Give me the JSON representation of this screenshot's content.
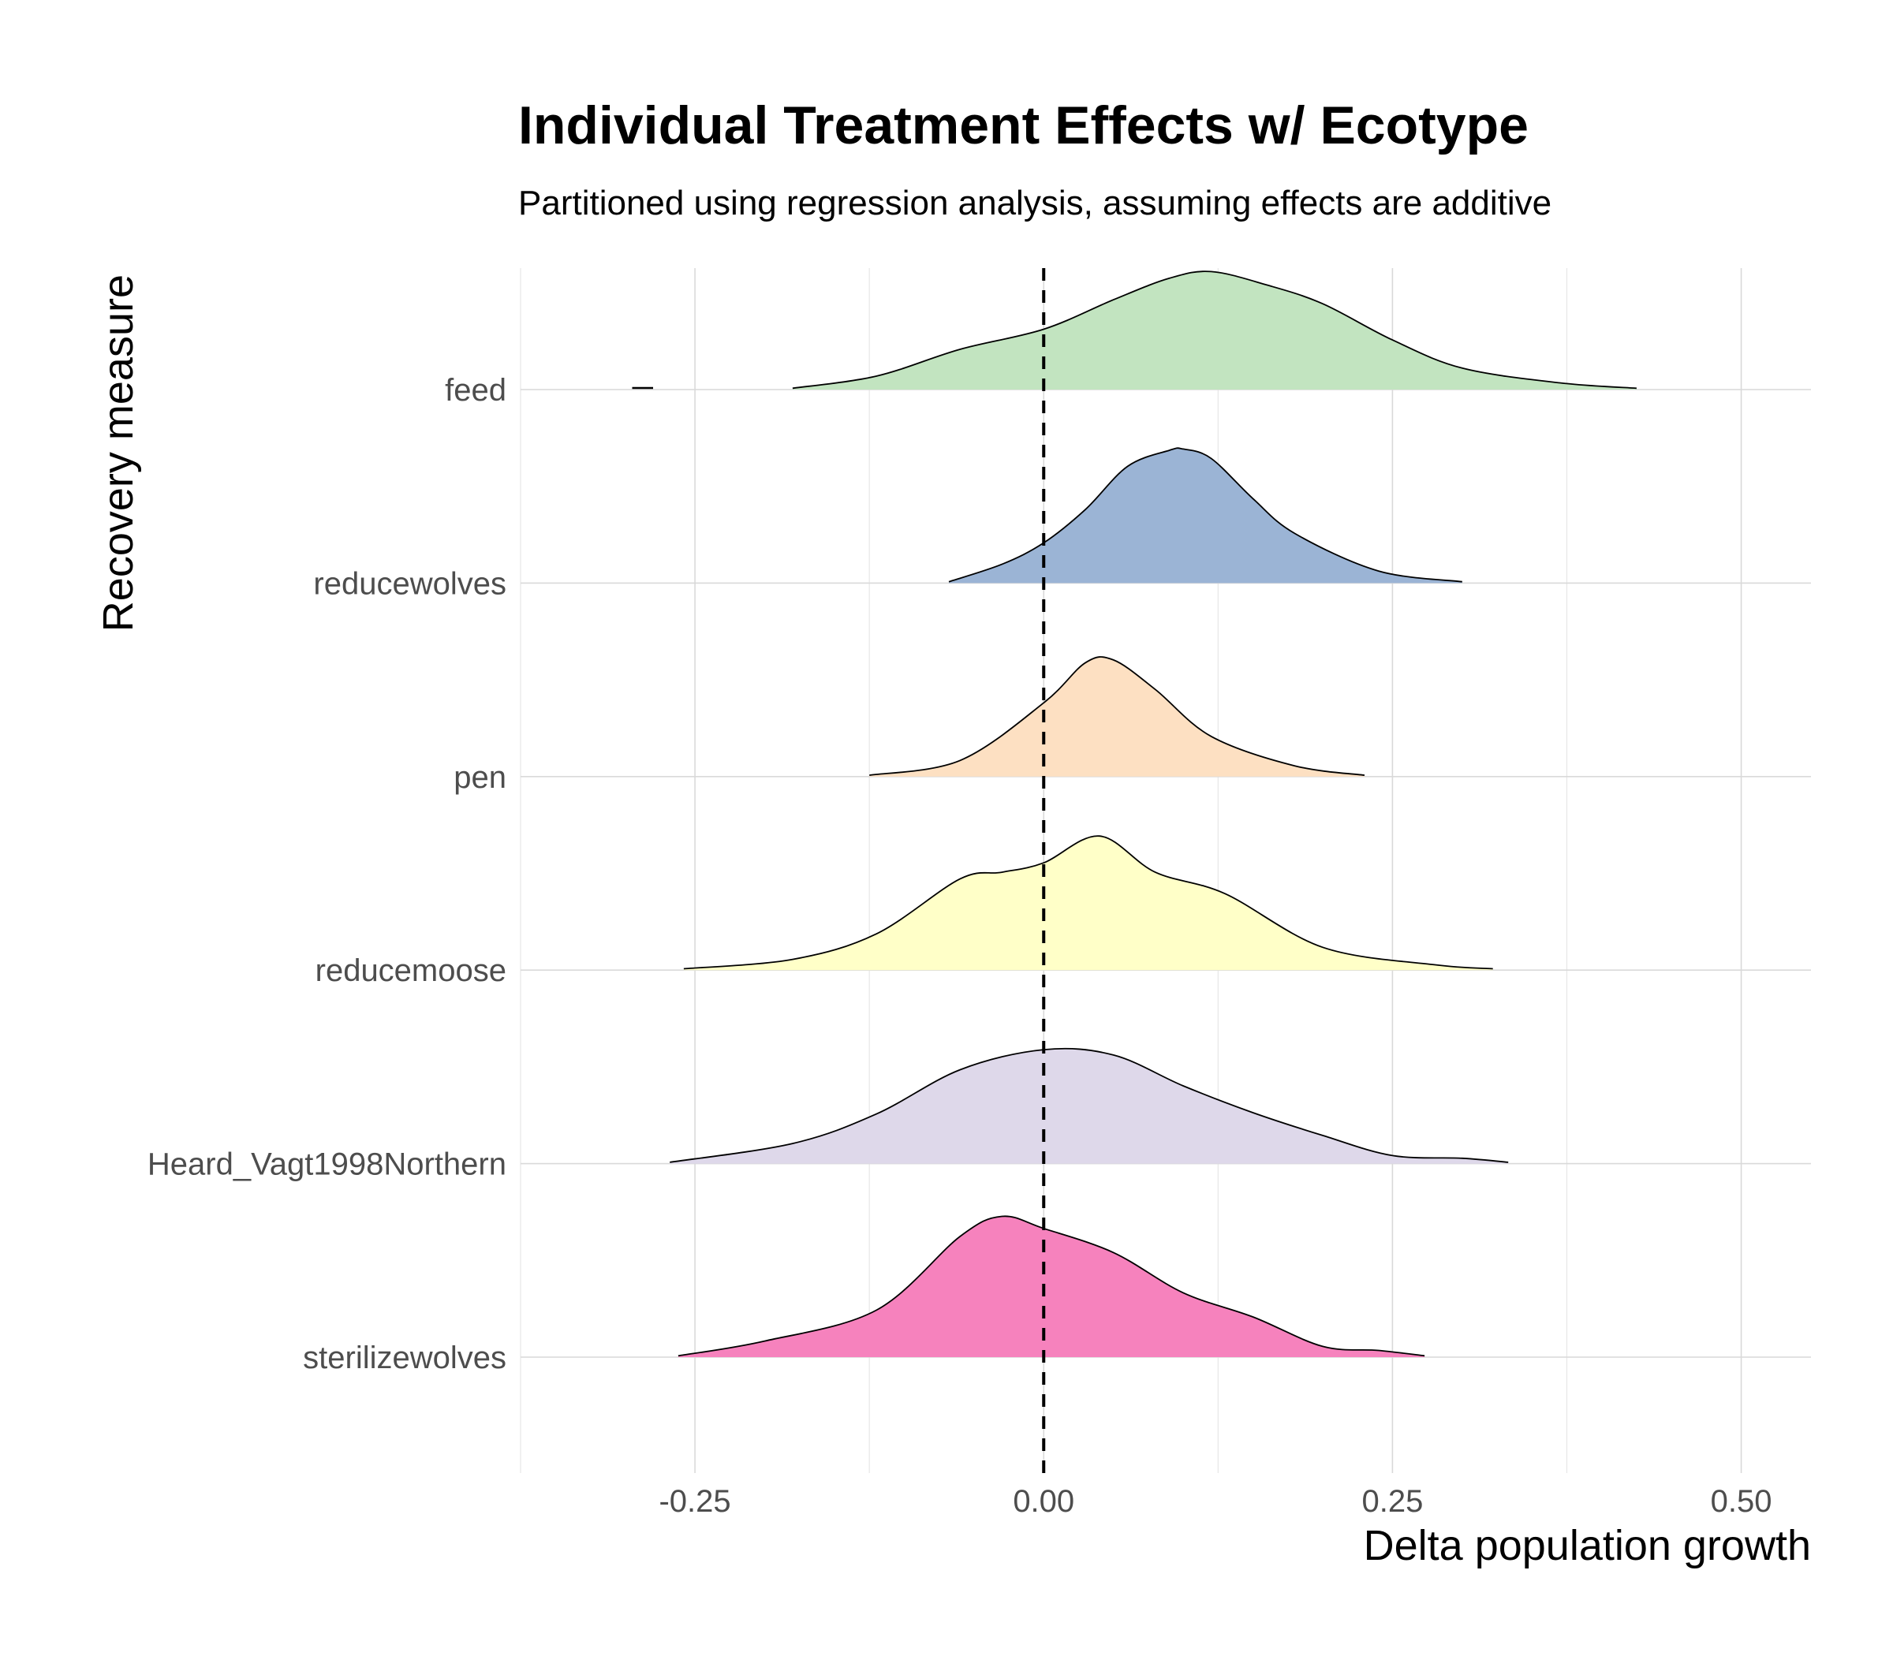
{
  "chart_data": {
    "type": "ridgeline",
    "title": "Individual Treatment Effects w/ Ecotype",
    "subtitle": "Partitioned using regression analysis, assuming effects are additive",
    "xlabel": "Delta population growth",
    "ylabel": "Recovery measure",
    "xlim": [
      -0.375,
      0.55
    ],
    "x_ticks": [
      -0.25,
      0.0,
      0.25,
      0.5
    ],
    "x_tick_labels": [
      "-0.25",
      "0.00",
      "0.25",
      "0.50"
    ],
    "grid": true,
    "reference_line": {
      "x": 0.0,
      "style": "dashed"
    },
    "categories": [
      "feed",
      "reducewolves",
      "pen",
      "reducemoose",
      "Heard_Vagt1998Northern",
      "sterilizewolves"
    ],
    "series": [
      {
        "category": "feed",
        "color": "#c2e4c0",
        "x": [
          -0.295,
          -0.28,
          -0.18,
          -0.12,
          -0.06,
          0.0,
          0.05,
          0.09,
          0.12,
          0.16,
          0.2,
          0.25,
          0.3,
          0.37,
          0.425
        ],
        "density": [
          0.01,
          0.01,
          0.01,
          0.1,
          0.3,
          0.45,
          0.67,
          0.83,
          0.88,
          0.78,
          0.64,
          0.37,
          0.16,
          0.05,
          0.01
        ]
      },
      {
        "category": "reducewolves",
        "color": "#9bb4d5",
        "x": [
          -0.068,
          -0.03,
          0.0,
          0.03,
          0.06,
          0.09,
          0.1,
          0.12,
          0.15,
          0.18,
          0.24,
          0.3
        ],
        "density": [
          0.01,
          0.14,
          0.3,
          0.55,
          0.87,
          0.99,
          1.0,
          0.93,
          0.63,
          0.37,
          0.09,
          0.01
        ]
      },
      {
        "category": "pen",
        "color": "#fde0c2",
        "x": [
          -0.125,
          -0.06,
          0.0,
          0.03,
          0.05,
          0.08,
          0.12,
          0.18,
          0.23
        ],
        "density": [
          0.01,
          0.12,
          0.55,
          0.85,
          0.87,
          0.65,
          0.3,
          0.08,
          0.01
        ]
      },
      {
        "category": "reducemoose",
        "color": "#ffffc8",
        "x": [
          -0.258,
          -0.18,
          -0.12,
          -0.06,
          -0.03,
          0.0,
          0.04,
          0.08,
          0.13,
          0.2,
          0.28,
          0.322
        ],
        "density": [
          0.01,
          0.08,
          0.27,
          0.68,
          0.73,
          0.8,
          1.0,
          0.73,
          0.57,
          0.17,
          0.04,
          0.01
        ]
      },
      {
        "category": "Heard_Vagt1998Northern",
        "color": "#ded8ea",
        "x": [
          -0.268,
          -0.18,
          -0.12,
          -0.06,
          0.0,
          0.05,
          0.1,
          0.15,
          0.2,
          0.25,
          0.3,
          0.333
        ],
        "density": [
          0.01,
          0.15,
          0.37,
          0.7,
          0.85,
          0.81,
          0.58,
          0.38,
          0.21,
          0.06,
          0.04,
          0.01
        ]
      },
      {
        "category": "sterilizewolves",
        "color": "#f682bd",
        "x": [
          -0.262,
          -0.2,
          -0.12,
          -0.06,
          -0.03,
          0.0,
          0.05,
          0.1,
          0.15,
          0.2,
          0.24,
          0.273
        ],
        "density": [
          0.01,
          0.12,
          0.35,
          0.9,
          1.05,
          0.96,
          0.78,
          0.48,
          0.3,
          0.08,
          0.05,
          0.01
        ]
      }
    ]
  }
}
